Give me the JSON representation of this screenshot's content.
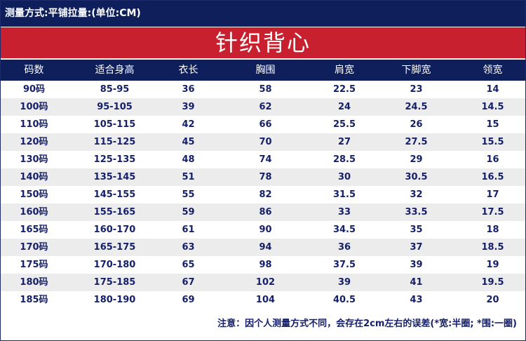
{
  "header": {
    "measure_note": "测量方式:平铺拉量:(单位:CM)"
  },
  "title": "针织背心",
  "table": {
    "columns": [
      "码数",
      "适合身高",
      "衣长",
      "胸围",
      "肩宽",
      "下脚宽",
      "领宽"
    ],
    "rows": [
      [
        "90码",
        "85-95",
        "36",
        "58",
        "22.5",
        "23",
        "14"
      ],
      [
        "100码",
        "95-105",
        "39",
        "62",
        "24",
        "24.5",
        "14.5"
      ],
      [
        "110码",
        "105-115",
        "42",
        "66",
        "25.5",
        "26",
        "15"
      ],
      [
        "120码",
        "115-125",
        "45",
        "70",
        "27",
        "27.5",
        "15.5"
      ],
      [
        "130码",
        "125-135",
        "48",
        "74",
        "28.5",
        "29",
        "16"
      ],
      [
        "140码",
        "135-145",
        "51",
        "78",
        "30",
        "30.5",
        "16.5"
      ],
      [
        "150码",
        "145-155",
        "55",
        "82",
        "31.5",
        "32",
        "17"
      ],
      [
        "160码",
        "155-165",
        "59",
        "86",
        "33",
        "33.5",
        "17.5"
      ],
      [
        "165码",
        "160-170",
        "61",
        "90",
        "34.5",
        "35",
        "18"
      ],
      [
        "170码",
        "165-175",
        "63",
        "94",
        "36",
        "37",
        "18.5"
      ],
      [
        "175码",
        "170-180",
        "65",
        "98",
        "37.5",
        "39",
        "19"
      ],
      [
        "180码",
        "175-185",
        "67",
        "102",
        "39",
        "41",
        "19.5"
      ],
      [
        "185码",
        "180-190",
        "69",
        "104",
        "40.5",
        "43",
        "20"
      ]
    ]
  },
  "footnote": "注意：因个人测量方式不同，会存在2cm左右的误差(*宽:半圈; *围:一圈)"
}
